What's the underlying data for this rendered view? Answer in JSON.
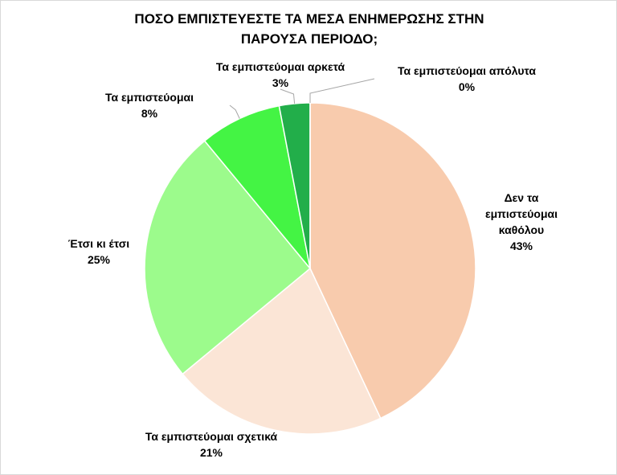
{
  "chart_data": {
    "type": "pie",
    "title": "ΠΟΣΟ ΕΜΠΙΣΤΕΥΕΣΤΕ ΤΑ ΜΕΣΑ ΕΝΗΜΕΡΩΣΗΣ ΣΤΗΝ ΠΑΡΟΥΣΑ ΠΕΡΙΟΔΟ;",
    "categories": [
      "Δεν τα εμπιστεύομαι καθόλου",
      "Τα εμπιστεύομαι σχετικά",
      "Έτσι κι έτσι",
      "Τα εμπιστεύομαι",
      "Τα εμπιστεύομαι αρκετά",
      "Τα εμπιστεύομαι απόλυτα"
    ],
    "values": [
      43,
      21,
      25,
      8,
      3,
      0
    ],
    "value_labels": [
      "43%",
      "21%",
      "25%",
      "8%",
      "3%",
      "0%"
    ],
    "colors": [
      "#f8cbad",
      "#fbe5d6",
      "#9cfb8c",
      "#44f444",
      "#22ae4a",
      "#00b050"
    ]
  }
}
